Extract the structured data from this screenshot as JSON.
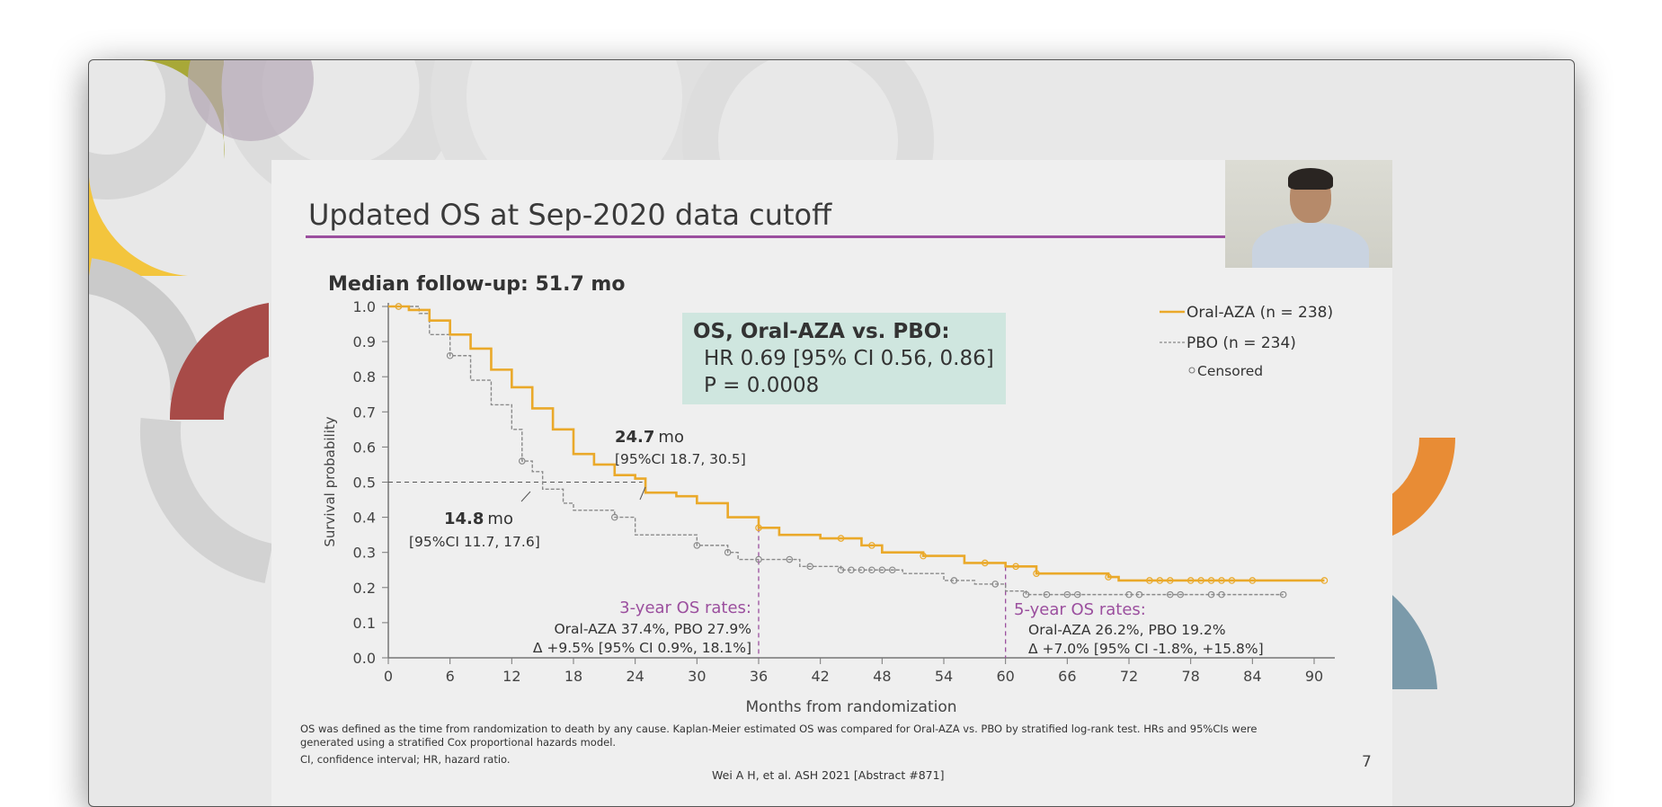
{
  "slide": {
    "title": "Updated OS at Sep-2020 data cutoff",
    "subtitle": "Median follow-up: 51.7 mo",
    "stats_box": {
      "line1": "OS, Oral-AZA vs. PBO:",
      "line2": "HR 0.69 [95% CI 0.56, 0.86]",
      "line3": "P = 0.0008"
    },
    "footnote1": "OS was defined as the time from randomization to death by any cause. Kaplan-Meier estimated OS was compared for Oral-AZA vs. PBO by stratified log-rank test. HRs and 95%CIs were",
    "footnote2": "generated using a stratified Cox proportional hazards model.",
    "footnote3": "CI, confidence interval; HR, hazard ratio.",
    "citation": "Wei A H, et al. ASH 2021 [Abstract #871]",
    "page_number": "7"
  },
  "chart_data": {
    "type": "line",
    "xlabel": "Months from randomization",
    "ylabel": "Survival probability",
    "xlim": [
      0,
      92
    ],
    "ylim": [
      0,
      1.0
    ],
    "xticks": [
      "0",
      "6",
      "12",
      "18",
      "24",
      "30",
      "36",
      "42",
      "48",
      "54",
      "60",
      "66",
      "72",
      "78",
      "84",
      "90"
    ],
    "yticks": [
      "0.0",
      "0.1",
      "0.2",
      "0.3",
      "0.4",
      "0.5",
      "0.6",
      "0.7",
      "0.8",
      "0.9",
      "1.0"
    ],
    "legend_position": "top-right",
    "legend_censored": "Censored",
    "series": [
      {
        "name": "Oral-AZA (n = 238)",
        "color": "#eaa92a",
        "style": "solid",
        "x": [
          0,
          2,
          4,
          6,
          8,
          10,
          12,
          14,
          16,
          18,
          20,
          22,
          24,
          25,
          28,
          30,
          33,
          36,
          38,
          42,
          46,
          48,
          52,
          56,
          60,
          62,
          63,
          70,
          71,
          91
        ],
        "y": [
          1.0,
          0.99,
          0.96,
          0.92,
          0.88,
          0.82,
          0.77,
          0.71,
          0.65,
          0.58,
          0.55,
          0.52,
          0.51,
          0.47,
          0.46,
          0.44,
          0.4,
          0.37,
          0.35,
          0.34,
          0.32,
          0.3,
          0.29,
          0.27,
          0.26,
          0.26,
          0.24,
          0.23,
          0.22,
          0.22
        ],
        "censored_x": [
          1,
          36,
          44,
          47,
          52,
          58,
          61,
          63,
          70,
          74,
          75,
          76,
          78,
          79,
          80,
          81,
          82,
          84,
          91
        ]
      },
      {
        "name": "PBO (n = 234)",
        "color": "#8a8a8a",
        "style": "dashed",
        "x": [
          0,
          3,
          4,
          6,
          8,
          10,
          12,
          13,
          14,
          15,
          17,
          18,
          22,
          24,
          30,
          33,
          34,
          36,
          40,
          44,
          50,
          54,
          57,
          60,
          62,
          87
        ],
        "y": [
          1.0,
          0.98,
          0.92,
          0.86,
          0.79,
          0.72,
          0.65,
          0.56,
          0.53,
          0.48,
          0.44,
          0.42,
          0.4,
          0.35,
          0.32,
          0.3,
          0.28,
          0.28,
          0.26,
          0.25,
          0.24,
          0.22,
          0.21,
          0.19,
          0.18,
          0.18
        ],
        "censored_x": [
          1,
          6,
          13,
          22,
          30,
          33,
          36,
          39,
          41,
          44,
          45,
          46,
          47,
          48,
          49,
          55,
          59,
          62,
          64,
          66,
          67,
          72,
          73,
          76,
          77,
          80,
          81,
          87
        ]
      }
    ],
    "median_line_y": 0.5,
    "annotations": {
      "aza_median": {
        "value": "24.7",
        "unit": "mo",
        "ci": "[95%CI 18.7, 30.5]"
      },
      "pbo_median": {
        "value": "14.8",
        "unit": "mo",
        "ci": "[95%CI 11.7, 17.6]"
      },
      "year3": {
        "month": 36,
        "title": "3-year OS rates:",
        "line1": "Oral-AZA 37.4%, PBO 27.9%",
        "line2": "Δ +9.5% [95% CI 0.9%, 18.1%]"
      },
      "year5": {
        "month": 60,
        "title": "5-year OS rates:",
        "line1": "Oral-AZA 26.2%, PBO 19.2%",
        "line2": "Δ +7.0% [95% CI -1.8%, +15.8%]"
      }
    },
    "annotation_color": "#9b4f9e"
  }
}
